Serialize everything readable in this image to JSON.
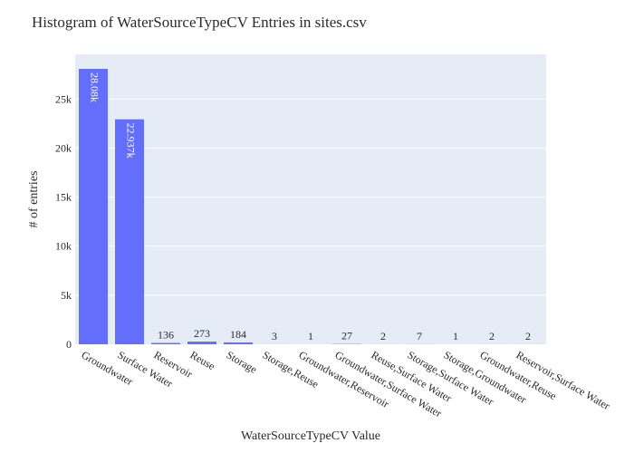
{
  "chart_data": {
    "type": "bar",
    "title": "Histogram of WaterSourceTypeCV Entries in sites.csv",
    "xlabel": "WaterSourceTypeCV Value",
    "ylabel": "# of entries",
    "categories": [
      "Groundwater",
      "Surface Water",
      "Reservoir",
      "Reuse",
      "Storage",
      "Storage,Reuse",
      "Groundwater,Reservoir",
      "Groundwater,Surface Water",
      "Reuse,Surface Water",
      "Storage,Surface Water",
      "Storage,Groundwater",
      "Groundwater,Reuse",
      "Reservoir,Surface Water"
    ],
    "values": [
      28080,
      22937,
      136,
      273,
      184,
      3,
      1,
      27,
      2,
      7,
      1,
      2,
      2
    ],
    "data_labels": [
      "28.08k",
      "22.937k",
      "136",
      "273",
      "184",
      "3",
      "1",
      "27",
      "2",
      "7",
      "1",
      "2",
      "2"
    ],
    "yticks": [
      0,
      5000,
      10000,
      15000,
      20000,
      25000
    ],
    "ytick_labels": [
      "0",
      "5k",
      "10k",
      "15k",
      "20k",
      "25k"
    ],
    "ylim": [
      0,
      29558
    ],
    "grid": true,
    "colors": {
      "bar": "#636efa",
      "plot_bg": "#e5ecf6",
      "grid": "#ffffff",
      "text": "#2a2a2a"
    }
  }
}
